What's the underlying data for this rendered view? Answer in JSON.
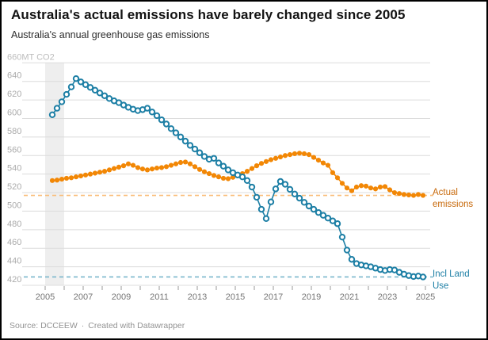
{
  "header": {
    "title": "Australia's actual emissions have barely changed since 2005",
    "subtitle": "Australia's annual greenhouse gas emissions"
  },
  "footer": {
    "source_prefix": "Source: ",
    "source": "DCCEEW",
    "separator": "·",
    "attribution": "Created with Datawrapper"
  },
  "chart_data": {
    "type": "line",
    "title": "Australia's actual emissions have barely changed since 2005",
    "subtitle": "Australia's annual greenhouse gas emissions",
    "grid": true,
    "legend_position": "right-annotations",
    "y_axis": {
      "min": 420,
      "max": 660,
      "tick_step": 20,
      "top_label": "660MT CO2",
      "label_color": "#ababab"
    },
    "x_axis": {
      "min": 2005,
      "max": 2025,
      "tick_step": 1,
      "label_years": [
        2005,
        2007,
        2009,
        2011,
        2013,
        2015,
        2017,
        2019,
        2021,
        2023,
        2025
      ],
      "label_color": "#757575"
    },
    "highlight_band": {
      "x_from": 2005,
      "x_to": 2006,
      "color": "#eeeeee"
    },
    "x_start": 2005.375,
    "x_step": 0.25,
    "series": [
      {
        "id": "actual-emissions",
        "name": "Actual emissions",
        "annotation": "Actual emissions",
        "color": "#f28705",
        "label_color": "#c86a0c",
        "ref_line_color": "#f9bd78",
        "point_style": "filled",
        "reference_value": 517,
        "values": [
          533,
          533.5,
          534.5,
          535.5,
          536,
          537,
          538,
          539,
          540,
          541,
          542,
          543,
          544.5,
          546,
          547.5,
          549,
          551,
          549.5,
          547,
          545.5,
          544.5,
          545.5,
          546.5,
          547,
          548,
          549.5,
          551,
          552.5,
          553,
          551,
          548,
          545,
          542.5,
          540.5,
          538.5,
          537,
          535.5,
          535,
          536.5,
          538.5,
          540.5,
          543,
          546,
          549,
          551.5,
          553.5,
          555.5,
          557,
          558.5,
          560,
          561,
          562,
          562.5,
          562,
          561,
          558,
          555,
          552,
          549.5,
          541.5,
          536,
          530,
          525,
          522,
          526,
          527.5,
          527,
          525,
          524,
          526,
          526.5,
          523,
          520,
          519,
          518,
          517.5,
          517,
          518,
          517
        ]
      },
      {
        "id": "incl-land-use",
        "name": "Incl Land Use",
        "annotation": "Incl Land Use",
        "color": "#1d7fa5",
        "label_color": "#1d7fa5",
        "ref_line_color": "#7ab6cc",
        "point_style": "open",
        "reference_value": 429,
        "values": [
          604,
          611,
          618,
          626,
          634,
          643,
          639.5,
          636.5,
          633.5,
          630.5,
          627.5,
          624.5,
          621.5,
          619,
          617,
          614.5,
          612,
          610,
          608.5,
          609.5,
          611,
          607,
          603,
          598.5,
          594,
          589,
          584.5,
          580,
          575.5,
          571,
          567,
          563,
          559,
          556,
          557,
          552,
          548.5,
          544.5,
          541.5,
          539,
          537,
          533,
          526,
          515,
          502,
          492,
          510,
          524,
          532,
          529,
          523.5,
          518.5,
          514,
          509.5,
          505.5,
          502,
          498.5,
          495.5,
          492.5,
          489.5,
          486.5,
          472,
          458,
          448,
          443.5,
          442,
          441,
          440,
          438.5,
          437,
          436,
          437,
          436.5,
          434,
          432,
          430.5,
          429.5,
          430,
          429
        ]
      }
    ]
  }
}
